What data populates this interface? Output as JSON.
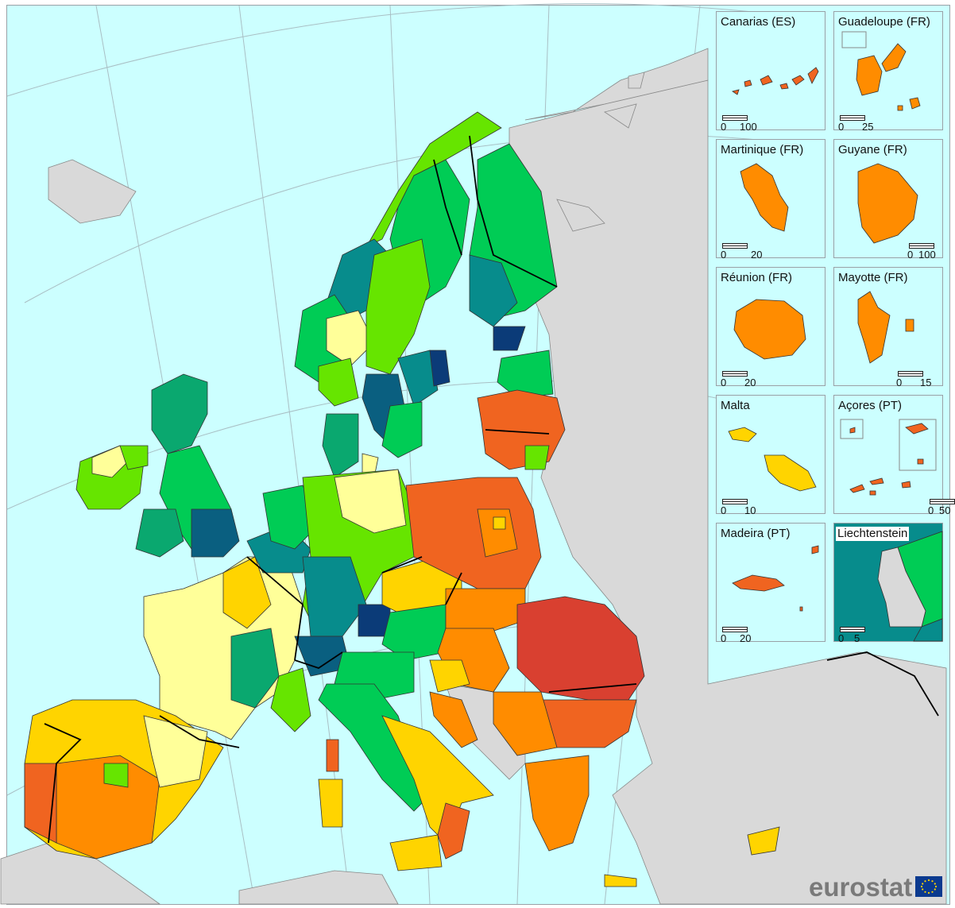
{
  "colors": {
    "sea": "#ccffff",
    "non_eu_land": "#d9d9d9",
    "class_1": "#0b3b78",
    "class_2": "#0a5f80",
    "class_3": "#078c8c",
    "class_4": "#0aa86f",
    "class_5": "#00cc55",
    "class_6": "#66e500",
    "class_7": "#ffff99",
    "class_8": "#ffd400",
    "class_9": "#ff8c00",
    "class_10": "#f06420",
    "class_11": "#d94030"
  },
  "insets": [
    {
      "title": "Canarias (ES)",
      "scale_max": "100",
      "fill": "class_10"
    },
    {
      "title": "Guadeloupe (FR)",
      "scale_max": "25",
      "fill": "class_9"
    },
    {
      "title": "Martinique (FR)",
      "scale_max": "20",
      "fill": "class_9"
    },
    {
      "title": "Guyane (FR)",
      "scale_max": "100",
      "fill": "class_9"
    },
    {
      "title": "Réunion (FR)",
      "scale_max": "20",
      "fill": "class_9"
    },
    {
      "title": "Mayotte (FR)",
      "scale_max": "15",
      "fill": "class_9"
    },
    {
      "title": "Malta",
      "scale_max": "10",
      "fill": "class_8"
    },
    {
      "title": "Açores (PT)",
      "scale_max": "50",
      "fill": "class_10"
    },
    {
      "title": "Madeira (PT)",
      "scale_max": "20",
      "fill": "class_10"
    },
    {
      "title": "Liechtenstein",
      "scale_max": "5",
      "fill": "class_3"
    }
  ],
  "scale_zero": "0",
  "logo": {
    "text": "eurostat",
    "flag_icon": "eu-flag-icon"
  }
}
